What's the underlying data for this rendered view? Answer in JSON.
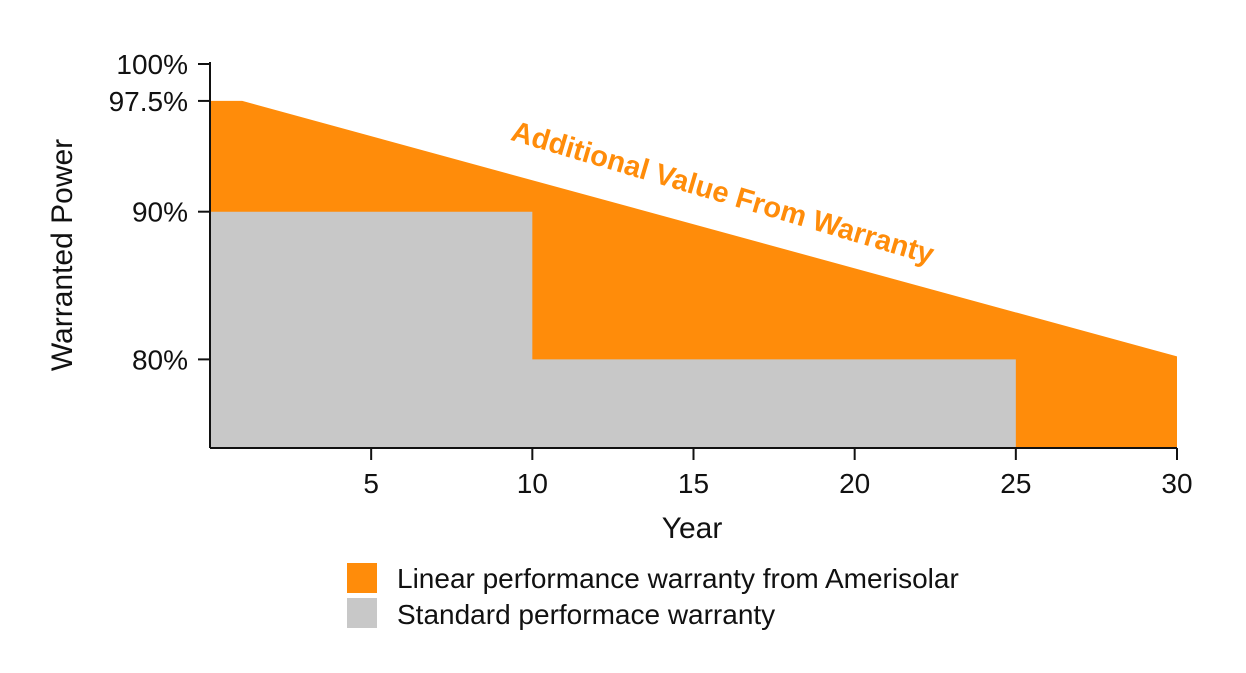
{
  "chart_data": {
    "type": "area",
    "xlabel": "Year",
    "ylabel": "Warranted Power",
    "xlim": [
      0,
      30
    ],
    "ylim": [
      74,
      100
    ],
    "x_ticks": [
      5,
      10,
      15,
      20,
      25,
      30
    ],
    "x_tick_labels": [
      "5",
      "10",
      "15",
      "20",
      "25",
      "30"
    ],
    "y_ticks": [
      100,
      97.5,
      90,
      80
    ],
    "y_tick_labels": [
      "100%",
      "97.5%",
      "90%",
      "80%"
    ],
    "grid": false,
    "legend_position": "bottom",
    "series": [
      {
        "name": "Linear performance warranty from Amerisolar",
        "color": "#FF8C0A",
        "x": [
          0,
          1,
          30
        ],
        "y": [
          97.5,
          97.5,
          80.2
        ]
      },
      {
        "name": "Standard performace warranty",
        "color": "#C8C8C8",
        "x": [
          0,
          10,
          10,
          25
        ],
        "y": [
          90,
          90,
          80,
          80
        ]
      }
    ],
    "annotations": [
      {
        "text": "Additional Value From Warranty",
        "color": "#FF8C0A"
      }
    ]
  }
}
